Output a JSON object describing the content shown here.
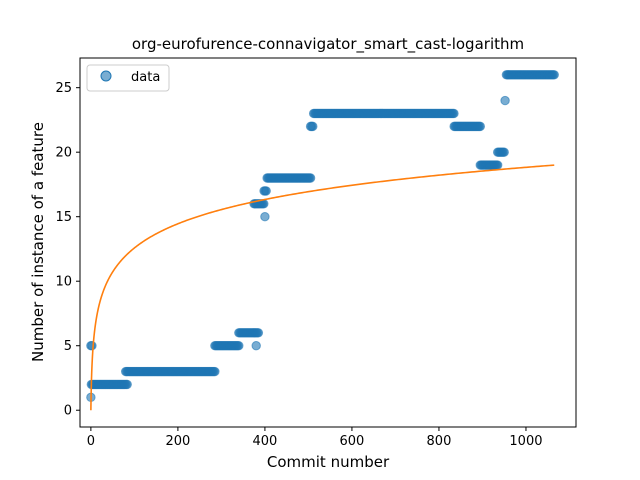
{
  "chart_data": {
    "type": "scatter",
    "title": "org-eurofurence-connavigator_smart_cast-logarithm",
    "xlabel": "Commit number",
    "ylabel": "Number of instance of a feature",
    "xlim": [
      -25,
      1115
    ],
    "ylim": [
      -1.3,
      27.3
    ],
    "xticks": [
      0,
      200,
      400,
      600,
      800,
      1000
    ],
    "yticks": [
      0,
      5,
      10,
      15,
      20,
      25
    ],
    "grid": false,
    "legend": {
      "placement": "top-left",
      "entries": [
        "data"
      ]
    },
    "colors": {
      "data": "#1f77b4",
      "fit": "#ff7f0e"
    },
    "series": [
      {
        "name": "data",
        "kind": "scatter",
        "segments": [
          {
            "x_start": 0,
            "x_end": 3,
            "y": 5
          },
          {
            "x_start": 0,
            "x_end": 0,
            "y": 1
          },
          {
            "x_start": 1,
            "x_end": 85,
            "y": 2
          },
          {
            "x_start": 80,
            "x_end": 285,
            "y": 3
          },
          {
            "x_start": 285,
            "x_end": 340,
            "y": 5
          },
          {
            "x_start": 340,
            "x_end": 385,
            "y": 6
          },
          {
            "x_start": 380,
            "x_end": 380,
            "y": 5
          },
          {
            "x_start": 375,
            "x_end": 398,
            "y": 16
          },
          {
            "x_start": 398,
            "x_end": 405,
            "y": 17
          },
          {
            "x_start": 400,
            "x_end": 400,
            "y": 15
          },
          {
            "x_start": 405,
            "x_end": 505,
            "y": 18
          },
          {
            "x_start": 505,
            "x_end": 512,
            "y": 22
          },
          {
            "x_start": 512,
            "x_end": 835,
            "y": 23
          },
          {
            "x_start": 835,
            "x_end": 895,
            "y": 22
          },
          {
            "x_start": 895,
            "x_end": 935,
            "y": 19
          },
          {
            "x_start": 935,
            "x_end": 950,
            "y": 20
          },
          {
            "x_start": 952,
            "x_end": 952,
            "y": 24
          },
          {
            "x_start": 955,
            "x_end": 1065,
            "y": 26
          }
        ]
      },
      {
        "kind": "line",
        "model": "logarithmic",
        "a": 2.725,
        "b": 0.0,
        "x_range": [
          0,
          1065
        ]
      }
    ]
  }
}
